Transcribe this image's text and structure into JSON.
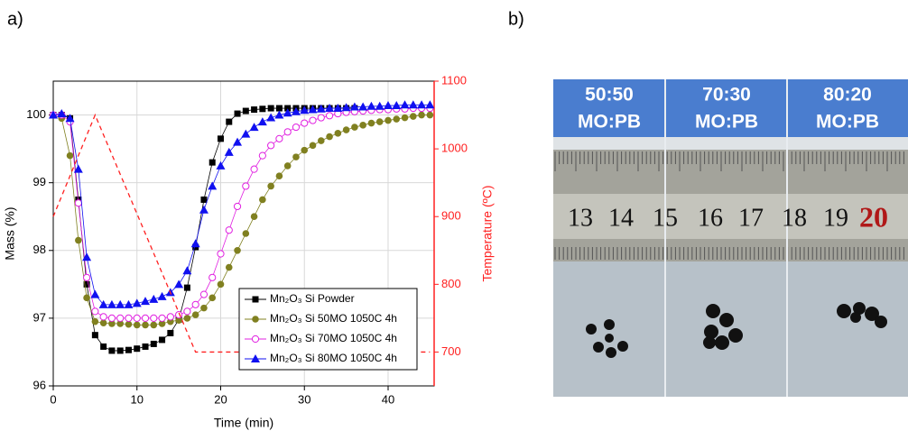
{
  "panel_labels": [
    "a)",
    "b)"
  ],
  "chart_data": {
    "type": "line",
    "xlabel": "Time (min)",
    "ylabel": "Mass (%)",
    "y2label": "Temperature (ºC)",
    "x": [
      0,
      1,
      2,
      3,
      4,
      5,
      6,
      7,
      8,
      9,
      10,
      11,
      12,
      13,
      14,
      15,
      16,
      17,
      18,
      19,
      20,
      21,
      22,
      23,
      24,
      25,
      26,
      27,
      28,
      29,
      30,
      31,
      32,
      33,
      34,
      35,
      36,
      37,
      38,
      39,
      40,
      41,
      42,
      43,
      44,
      45
    ],
    "xlim": [
      0,
      45.5
    ],
    "xticks": [
      0,
      10,
      20,
      30,
      40
    ],
    "ylim": [
      96,
      100.5
    ],
    "yticks": [
      96,
      97,
      98,
      99,
      100
    ],
    "y2lim": [
      650,
      1100
    ],
    "y2ticks": [
      700,
      800,
      900,
      1000,
      1100
    ],
    "grid": true,
    "legend": "lower right",
    "series": [
      {
        "name": "Mn₂O₃ Si Powder",
        "color": "#000000",
        "marker": "square",
        "values": [
          100,
          100,
          99.95,
          98.75,
          97.5,
          96.75,
          96.58,
          96.52,
          96.52,
          96.53,
          96.55,
          96.58,
          96.62,
          96.68,
          96.78,
          96.98,
          97.45,
          98.05,
          98.75,
          99.3,
          99.65,
          99.9,
          100.02,
          100.06,
          100.08,
          100.09,
          100.1,
          100.1,
          100.1,
          100.1,
          100.1,
          100.1,
          100.1,
          100.1,
          100.1,
          100.1,
          100.1,
          null,
          null,
          null,
          null,
          null,
          null,
          null,
          null,
          null
        ]
      },
      {
        "name": "Mn₂O₃ Si 50MO 1050C 4h",
        "color": "#808020",
        "marker": "circle",
        "values": [
          100,
          99.95,
          99.4,
          98.15,
          97.3,
          96.95,
          96.93,
          96.92,
          96.92,
          96.91,
          96.9,
          96.9,
          96.9,
          96.92,
          96.95,
          96.97,
          97,
          97.05,
          97.15,
          97.3,
          97.5,
          97.75,
          98,
          98.25,
          98.5,
          98.75,
          98.95,
          99.1,
          99.25,
          99.38,
          99.48,
          99.55,
          99.62,
          99.68,
          99.73,
          99.78,
          99.82,
          99.85,
          99.88,
          99.9,
          99.92,
          99.94,
          99.96,
          99.98,
          100,
          100
        ]
      },
      {
        "name": "Mn₂O₃ Si 70MO 1050C 4h",
        "color": "#e020e0",
        "marker": "circle-open",
        "values": [
          100,
          100,
          99.9,
          98.7,
          97.6,
          97.1,
          97.02,
          97,
          97,
          97,
          97,
          97,
          97,
          97,
          97.02,
          97.05,
          97.1,
          97.2,
          97.35,
          97.6,
          97.95,
          98.3,
          98.65,
          98.95,
          99.2,
          99.4,
          99.55,
          99.65,
          99.75,
          99.82,
          99.88,
          99.92,
          99.96,
          99.99,
          100.02,
          100.04,
          100.05,
          100.06,
          100.07,
          100.08,
          100.08,
          100.09,
          100.09,
          100.1,
          100.1,
          100.1
        ]
      },
      {
        "name": "Mn₂O₃ Si 80MO 1050C 4h",
        "color": "#1010f0",
        "marker": "triangle",
        "values": [
          100,
          100.02,
          99.95,
          99.2,
          97.9,
          97.35,
          97.2,
          97.2,
          97.2,
          97.2,
          97.22,
          97.25,
          97.28,
          97.32,
          97.38,
          97.5,
          97.7,
          98.1,
          98.6,
          98.95,
          99.25,
          99.45,
          99.6,
          99.72,
          99.82,
          99.9,
          99.96,
          100,
          100.03,
          100.05,
          100.07,
          100.08,
          100.09,
          100.1,
          100.1,
          100.11,
          100.12,
          100.12,
          100.13,
          100.13,
          100.14,
          100.14,
          100.15,
          100.15,
          100.15,
          100.15
        ]
      },
      {
        "color": "#ff2020",
        "axis": "y2",
        "dash": true,
        "x": [
          0,
          5,
          17,
          45
        ],
        "values": [
          900,
          1050,
          700,
          700
        ]
      }
    ]
  },
  "photo": {
    "columns": [
      [
        "50:50",
        "MO:PB"
      ],
      [
        "70:30",
        "MO:PB"
      ],
      [
        "80:20",
        "MO:PB"
      ]
    ],
    "ruler_numbers": [
      "13",
      "14",
      "15",
      "16",
      "17",
      "18",
      "19",
      "20"
    ]
  }
}
